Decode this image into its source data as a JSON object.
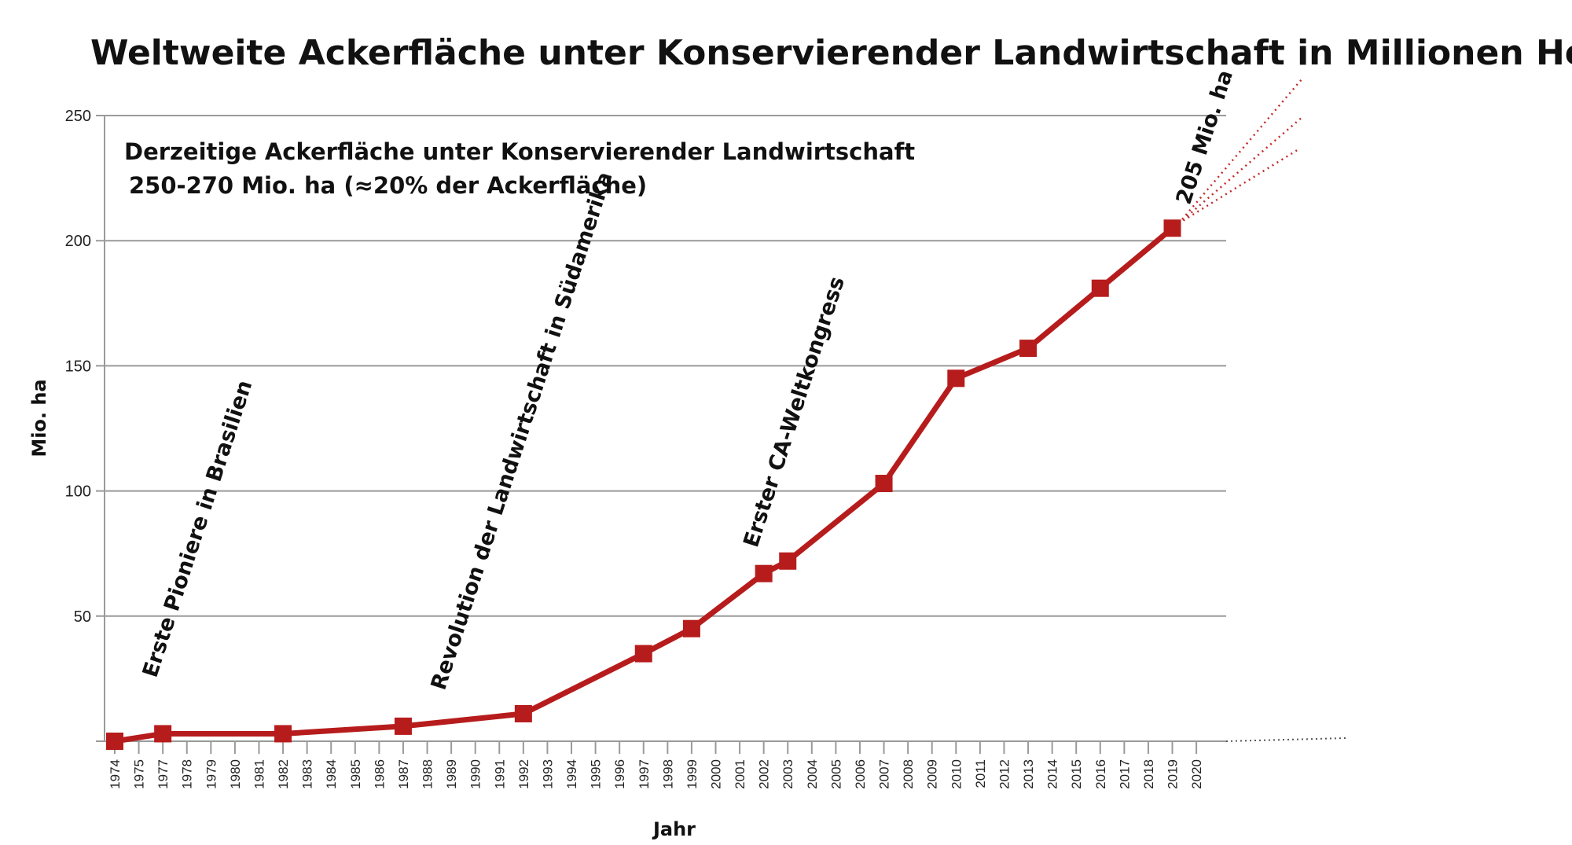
{
  "chart_data": {
    "type": "line",
    "title": "Weltweite Ackerfläche unter Konservierender Landwirtschaft in Millionen Hektar",
    "subtitle_lines": [
      "Derzeitige Ackerfläche unter Konservierender Landwirtschaft",
      "250-270 Mio. ha (≈20% der Ackerfläche)"
    ],
    "xlabel": "Jahr",
    "ylabel": "Mio. ha",
    "ylim": [
      0,
      250
    ],
    "yticks": [
      50,
      100,
      150,
      200,
      250
    ],
    "categories": [
      "1974",
      "1975",
      "1977",
      "1978",
      "1979",
      "1980",
      "1981",
      "1982",
      "1983",
      "1984",
      "1985",
      "1986",
      "1987",
      "1988",
      "1989",
      "1990",
      "1991",
      "1992",
      "1993",
      "1994",
      "1995",
      "1996",
      "1997",
      "1998",
      "1999",
      "2000",
      "2001",
      "2002",
      "2003",
      "2004",
      "2005",
      "2006",
      "2007",
      "2008",
      "2009",
      "2010",
      "2011",
      "2012",
      "2013",
      "2014",
      "2015",
      "2016",
      "2017",
      "2018",
      "2019",
      "2020"
    ],
    "series": [
      {
        "color": "#b71c1c",
        "points": [
          {
            "x": "1974",
            "y": 0
          },
          {
            "x": "1977",
            "y": 3
          },
          {
            "x": "1982",
            "y": 3
          },
          {
            "x": "1987",
            "y": 6
          },
          {
            "x": "1992",
            "y": 11
          },
          {
            "x": "1997",
            "y": 35
          },
          {
            "x": "1999",
            "y": 45
          },
          {
            "x": "2002",
            "y": 67
          },
          {
            "x": "2003",
            "y": 72
          },
          {
            "x": "2007",
            "y": 103
          },
          {
            "x": "2010",
            "y": 145
          },
          {
            "x": "2013",
            "y": 157
          },
          {
            "x": "2016",
            "y": 181
          },
          {
            "x": "2019",
            "y": 205
          }
        ]
      }
    ],
    "annotations": [
      {
        "text": "Erste Pioniere in Brasilien",
        "x": "1975",
        "y": 25
      },
      {
        "text": "Revolution der Landwirtschaft in Südamerika",
        "x": "1988",
        "y": 20
      },
      {
        "text": "Erster CA-Weltkongress",
        "x": "2001",
        "y": 77
      },
      {
        "text": "205 Mio. ha",
        "x": "2019",
        "y": 214
      }
    ],
    "grid": true,
    "legend": "none"
  }
}
